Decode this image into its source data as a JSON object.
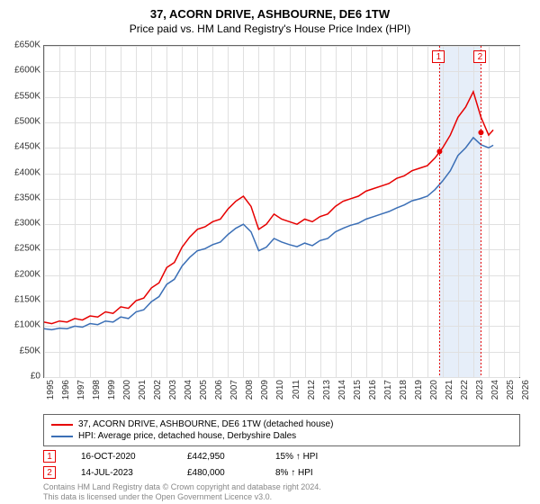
{
  "title": "37, ACORN DRIVE, ASHBOURNE, DE6 1TW",
  "subtitle": "Price paid vs. HM Land Registry's House Price Index (HPI)",
  "chart": {
    "type": "line",
    "background_color": "#ffffff",
    "grid_color": "#e0e0e0",
    "border_color": "#666666",
    "x": {
      "min": 1995,
      "max": 2026,
      "ticks": [
        1995,
        1996,
        1997,
        1998,
        1999,
        2000,
        2001,
        2002,
        2003,
        2004,
        2005,
        2006,
        2007,
        2008,
        2009,
        2010,
        2011,
        2012,
        2013,
        2014,
        2015,
        2016,
        2017,
        2018,
        2019,
        2020,
        2021,
        2022,
        2023,
        2024,
        2025,
        2026
      ],
      "label_fontsize": 10
    },
    "y": {
      "min": 0,
      "max": 650000,
      "ticks": [
        0,
        50000,
        100000,
        150000,
        200000,
        250000,
        300000,
        350000,
        400000,
        450000,
        500000,
        550000,
        600000,
        650000
      ],
      "tick_labels": [
        "£0",
        "£50K",
        "£100K",
        "£150K",
        "£200K",
        "£250K",
        "£300K",
        "£350K",
        "£400K",
        "£450K",
        "£500K",
        "£550K",
        "£600K",
        "£650K"
      ],
      "label_fontsize": 10
    },
    "highlight_band": {
      "start": 2020.8,
      "end": 2023.5,
      "color": "#e6eef9"
    },
    "series": [
      {
        "name": "37, ACORN DRIVE, ASHBOURNE, DE6 1TW (detached house)",
        "color": "#e60000",
        "line_width": 1.5,
        "x": [
          1995,
          1995.5,
          1996,
          1996.5,
          1997,
          1997.5,
          1998,
          1998.5,
          1999,
          1999.5,
          2000,
          2000.5,
          2001,
          2001.5,
          2002,
          2002.5,
          2003,
          2003.5,
          2004,
          2004.5,
          2005,
          2005.5,
          2006,
          2006.5,
          2007,
          2007.5,
          2008,
          2008.5,
          2009,
          2009.5,
          2010,
          2010.5,
          2011,
          2011.5,
          2012,
          2012.5,
          2013,
          2013.5,
          2014,
          2014.5,
          2015,
          2015.5,
          2016,
          2016.5,
          2017,
          2017.5,
          2018,
          2018.5,
          2019,
          2019.5,
          2020,
          2020.5,
          2021,
          2021.5,
          2022,
          2022.5,
          2023,
          2023.5,
          2024,
          2024.3
        ],
        "y": [
          108000,
          105000,
          110000,
          108000,
          115000,
          112000,
          120000,
          118000,
          128000,
          125000,
          138000,
          135000,
          150000,
          155000,
          175000,
          185000,
          215000,
          225000,
          255000,
          275000,
          290000,
          295000,
          305000,
          310000,
          330000,
          345000,
          355000,
          335000,
          290000,
          300000,
          320000,
          310000,
          305000,
          300000,
          310000,
          305000,
          315000,
          320000,
          335000,
          345000,
          350000,
          355000,
          365000,
          370000,
          375000,
          380000,
          390000,
          395000,
          405000,
          410000,
          415000,
          430000,
          450000,
          475000,
          510000,
          530000,
          560000,
          510000,
          475000,
          485000
        ]
      },
      {
        "name": "HPI: Average price, detached house, Derbyshire Dales",
        "color": "#3b6fb6",
        "line_width": 1.5,
        "x": [
          1995,
          1995.5,
          1996,
          1996.5,
          1997,
          1997.5,
          1998,
          1998.5,
          1999,
          1999.5,
          2000,
          2000.5,
          2001,
          2001.5,
          2002,
          2002.5,
          2003,
          2003.5,
          2004,
          2004.5,
          2005,
          2005.5,
          2006,
          2006.5,
          2007,
          2007.5,
          2008,
          2008.5,
          2009,
          2009.5,
          2010,
          2010.5,
          2011,
          2011.5,
          2012,
          2012.5,
          2013,
          2013.5,
          2014,
          2014.5,
          2015,
          2015.5,
          2016,
          2016.5,
          2017,
          2017.5,
          2018,
          2018.5,
          2019,
          2019.5,
          2020,
          2020.5,
          2021,
          2021.5,
          2022,
          2022.5,
          2023,
          2023.5,
          2024,
          2024.3
        ],
        "y": [
          95000,
          93000,
          96000,
          95000,
          100000,
          98000,
          105000,
          103000,
          110000,
          108000,
          118000,
          115000,
          128000,
          132000,
          148000,
          158000,
          182000,
          192000,
          218000,
          235000,
          248000,
          252000,
          260000,
          265000,
          280000,
          292000,
          300000,
          285000,
          248000,
          255000,
          272000,
          265000,
          260000,
          256000,
          263000,
          258000,
          268000,
          272000,
          285000,
          292000,
          298000,
          302000,
          310000,
          315000,
          320000,
          325000,
          332000,
          338000,
          346000,
          350000,
          355000,
          368000,
          385000,
          405000,
          435000,
          450000,
          470000,
          456000,
          450000,
          455000
        ]
      }
    ],
    "markers": [
      {
        "id": "1",
        "x": 2020.8,
        "y": 442950
      },
      {
        "id": "2",
        "x": 2023.5,
        "y": 480000
      }
    ]
  },
  "legend": {
    "items": [
      {
        "color": "#e60000",
        "label": "37, ACORN DRIVE, ASHBOURNE, DE6 1TW (detached house)"
      },
      {
        "color": "#3b6fb6",
        "label": "HPI: Average price, detached house, Derbyshire Dales"
      }
    ]
  },
  "transactions": [
    {
      "id": "1",
      "date": "16-OCT-2020",
      "price": "£442,950",
      "pct": "15%",
      "suffix": "HPI"
    },
    {
      "id": "2",
      "date": "14-JUL-2023",
      "price": "£480,000",
      "pct": "8%",
      "suffix": "HPI"
    }
  ],
  "footnote_line1": "Contains HM Land Registry data © Crown copyright and database right 2024.",
  "footnote_line2": "This data is licensed under the Open Government Licence v3.0."
}
